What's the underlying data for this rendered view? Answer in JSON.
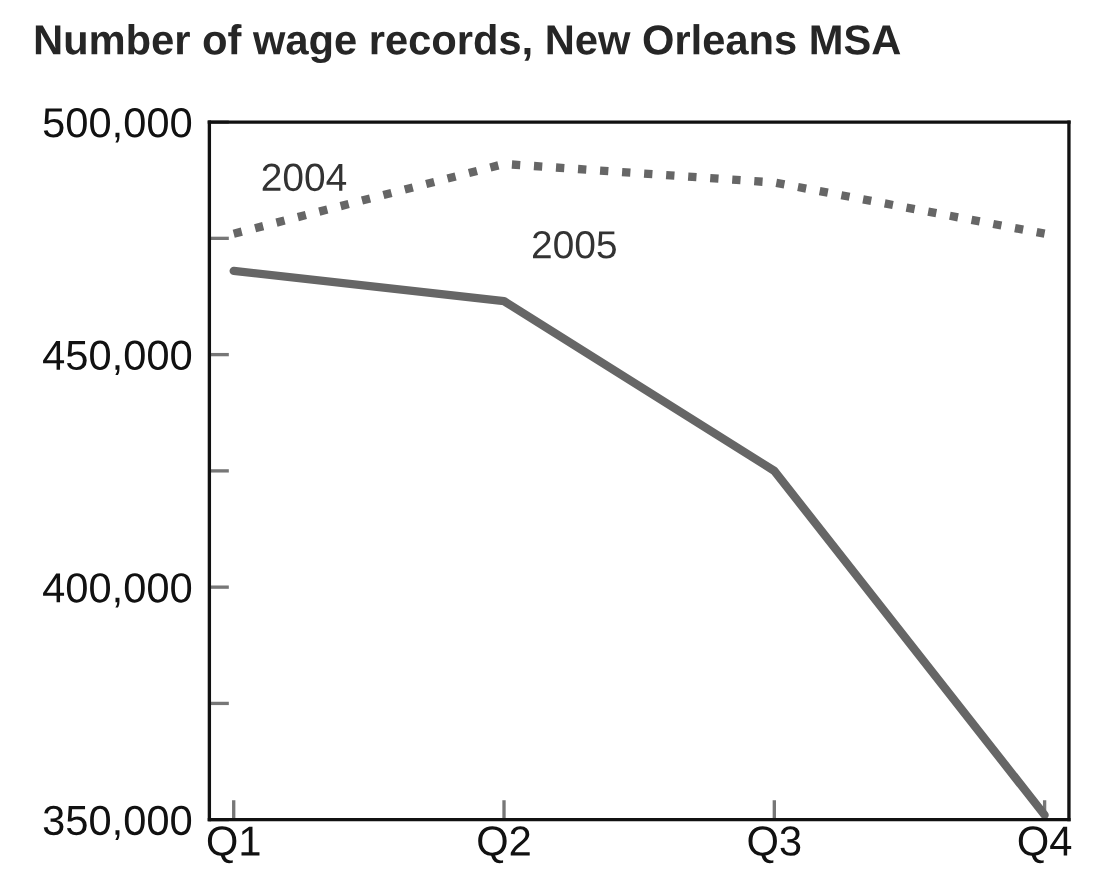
{
  "chart_data": {
    "type": "line",
    "title": "Number of wage records, New Orleans MSA",
    "categories": [
      "Q1",
      "Q2",
      "Q3",
      "Q4"
    ],
    "series": [
      {
        "name": "2004",
        "color": "#666666",
        "line_style": "dotted",
        "values": [
          476000,
          491000,
          487000,
          476000
        ]
      },
      {
        "name": "2005",
        "color": "#666666",
        "line_style": "solid",
        "values": [
          468000,
          461500,
          425000,
          351000
        ]
      }
    ],
    "ylim": [
      350000,
      500000
    ],
    "yticks": [
      {
        "value": 350000,
        "label": "350,000"
      },
      {
        "value": 375000,
        "label": null
      },
      {
        "value": 400000,
        "label": "400,000"
      },
      {
        "value": 425000,
        "label": null
      },
      {
        "value": 450000,
        "label": "450,000"
      },
      {
        "value": 475000,
        "label": null
      },
      {
        "value": 500000,
        "label": "500,000"
      }
    ],
    "grid": false,
    "legend": false,
    "marker": "none"
  }
}
